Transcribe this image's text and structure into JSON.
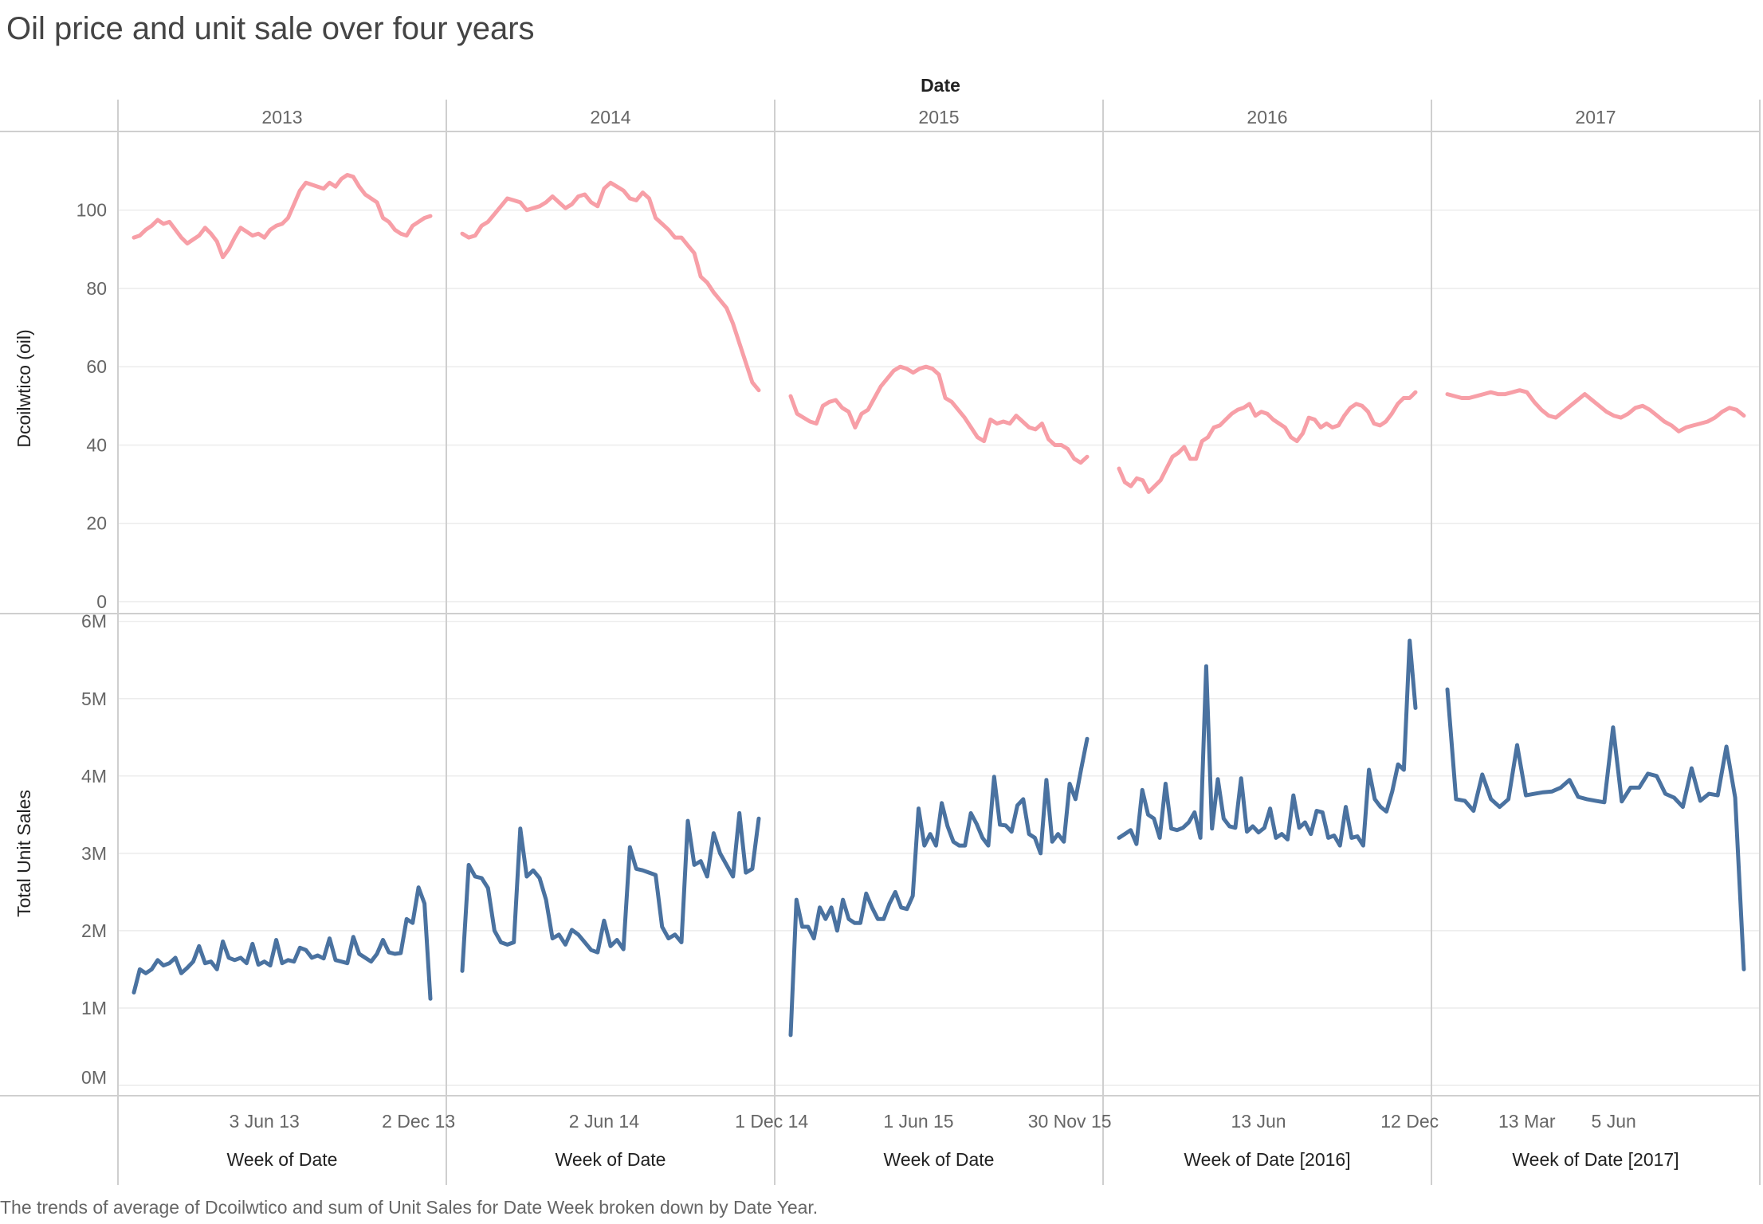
{
  "title": "Oil price and unit sale over four years",
  "caption": "The trends of average of Dcoilwtico and sum of Unit Sales for Date Week broken down by Date Year.",
  "colors": {
    "oil": "#f79fa7",
    "sales": "#4a72a0",
    "grid": "#ececec",
    "divider": "#cfcfcf"
  },
  "chart_data": {
    "type": "line",
    "column_header": "Date",
    "years": [
      "2013",
      "2014",
      "2015",
      "2016",
      "2017"
    ],
    "x_axis_titles": [
      "Week of Date",
      "Week of Date",
      "Week of Date",
      "Week of Date [2016]",
      "Week of Date [2017]"
    ],
    "x_tick_labels": [
      [
        "3 Jun 13",
        "2 Dec 13"
      ],
      [
        "2 Jun 14",
        "1 Dec 14"
      ],
      [
        "1 Jun 15",
        "30 Nov 15"
      ],
      [
        "13 Jun",
        "12 Dec"
      ],
      [
        "13 Mar",
        "5 Jun"
      ]
    ],
    "x_tick_weeks": [
      [
        22,
        48
      ],
      [
        22,
        48
      ],
      [
        22,
        48
      ],
      [
        24,
        50
      ],
      [
        11,
        23
      ]
    ],
    "oil": {
      "ylabel": "Dcoilwtico (oil)",
      "ylim": [
        0,
        115
      ],
      "yticks": [
        0,
        20,
        40,
        60,
        80,
        100
      ],
      "series": [
        [
          93,
          93.5,
          95,
          96,
          97.5,
          96.5,
          97,
          95,
          93,
          91.5,
          92.5,
          93.5,
          95.5,
          94,
          92,
          88,
          90,
          93,
          95.5,
          94.5,
          93.5,
          94,
          93,
          95,
          96,
          96.5,
          98,
          101.5,
          105,
          107,
          106.5,
          106,
          105.5,
          107,
          106,
          108,
          109,
          108.5,
          106,
          104,
          103,
          102,
          98,
          97,
          95,
          94,
          93.5,
          96,
          97,
          98,
          98.5
        ],
        [
          94,
          93,
          93.5,
          96,
          97,
          99,
          101,
          103,
          102.5,
          102,
          100,
          100.5,
          101,
          102,
          103.5,
          102,
          100.5,
          101.5,
          103.5,
          104,
          102,
          101,
          105.5,
          107,
          106,
          105,
          103,
          102.5,
          104.5,
          103,
          98,
          96.5,
          95,
          93,
          93,
          91,
          89,
          83,
          81.5,
          79,
          77,
          75,
          71,
          66,
          61,
          56,
          54
        ],
        [
          52.5,
          48,
          47,
          46,
          45.5,
          50,
          51,
          51.5,
          49.5,
          48.5,
          44.5,
          48,
          49,
          52,
          55,
          57,
          59,
          60,
          59.5,
          58.5,
          59.5,
          60,
          59.5,
          58,
          52,
          51,
          49,
          47,
          44.5,
          42,
          41,
          46.5,
          45.5,
          46,
          45.5,
          47.5,
          46,
          44.5,
          44,
          45.5,
          41.5,
          40,
          40,
          39,
          36.5,
          35.5,
          37
        ],
        [
          34,
          30.5,
          29.5,
          31.5,
          31,
          28,
          29.5,
          31,
          34,
          37,
          38,
          39.5,
          36.5,
          36.5,
          41,
          42,
          44.5,
          45,
          46.5,
          48,
          49,
          49.5,
          50.5,
          47.5,
          48.5,
          48,
          46.5,
          45.5,
          44.5,
          42,
          41,
          43,
          47,
          46.5,
          44.5,
          45.5,
          44.5,
          45,
          47.5,
          49.5,
          50.5,
          50,
          48.5,
          45.5,
          45,
          46,
          48,
          50.5,
          52,
          52,
          53.5
        ],
        [
          53,
          52.5,
          52,
          52,
          52.5,
          53,
          53.5,
          53,
          53,
          53.5,
          54,
          53.5,
          51,
          49,
          47.5,
          47,
          48.5,
          50,
          51.5,
          53,
          51.5,
          50,
          48.5,
          47.5,
          47,
          48,
          49.5,
          50,
          49,
          47.5,
          46,
          45,
          43.5,
          44.5,
          45,
          45.5,
          46,
          47,
          48.5,
          49.5,
          49,
          47.5
        ]
      ]
    },
    "sales": {
      "ylabel": "Total Unit Sales",
      "ylim": [
        0,
        6100000
      ],
      "yticks": [
        0,
        1000000,
        2000000,
        3000000,
        4000000,
        5000000,
        6000000
      ],
      "ytick_labels": [
        "0M",
        "1M",
        "2M",
        "3M",
        "4M",
        "5M",
        "6M"
      ],
      "series": [
        [
          1200000,
          1500000,
          1450000,
          1500000,
          1620000,
          1550000,
          1580000,
          1650000,
          1450000,
          1520000,
          1600000,
          1800000,
          1580000,
          1600000,
          1500000,
          1860000,
          1650000,
          1620000,
          1650000,
          1580000,
          1830000,
          1560000,
          1600000,
          1550000,
          1880000,
          1580000,
          1620000,
          1600000,
          1780000,
          1750000,
          1650000,
          1680000,
          1640000,
          1900000,
          1620000,
          1600000,
          1580000,
          1920000,
          1700000,
          1650000,
          1600000,
          1700000,
          1880000,
          1720000,
          1700000,
          1710000,
          2150000,
          2100000,
          2560000,
          2350000,
          1120000
        ],
        [
          1480000,
          2850000,
          2700000,
          2680000,
          2550000,
          2000000,
          1850000,
          1820000,
          1850000,
          3320000,
          2700000,
          2780000,
          2680000,
          2400000,
          1900000,
          1950000,
          1820000,
          2010000,
          1950000,
          1850000,
          1750000,
          1720000,
          2130000,
          1800000,
          1880000,
          1760000,
          3080000,
          2800000,
          2780000,
          2750000,
          2720000,
          2050000,
          1900000,
          1950000,
          1850000,
          3420000,
          2850000,
          2900000,
          2700000,
          3260000,
          3000000,
          2850000,
          2700000,
          3520000,
          2750000,
          2800000,
          3450000
        ],
        [
          650000,
          2400000,
          2050000,
          2050000,
          1900000,
          2300000,
          2150000,
          2300000,
          2000000,
          2400000,
          2150000,
          2100000,
          2100000,
          2480000,
          2300000,
          2150000,
          2150000,
          2350000,
          2500000,
          2300000,
          2280000,
          2450000,
          3580000,
          3100000,
          3250000,
          3100000,
          3650000,
          3350000,
          3150000,
          3100000,
          3100000,
          3520000,
          3380000,
          3200000,
          3100000,
          3990000,
          3370000,
          3360000,
          3280000,
          3620000,
          3700000,
          3250000,
          3200000,
          3000000,
          3950000,
          3150000,
          3250000,
          3150000,
          3900000,
          3700000,
          4100000,
          4480000
        ],
        [
          3200000,
          3250000,
          3300000,
          3120000,
          3820000,
          3500000,
          3450000,
          3200000,
          3900000,
          3320000,
          3300000,
          3330000,
          3400000,
          3530000,
          3200000,
          5420000,
          3320000,
          3960000,
          3450000,
          3350000,
          3330000,
          3970000,
          3280000,
          3350000,
          3270000,
          3330000,
          3580000,
          3200000,
          3250000,
          3180000,
          3750000,
          3330000,
          3400000,
          3250000,
          3550000,
          3530000,
          3200000,
          3230000,
          3100000,
          3600000,
          3200000,
          3220000,
          3100000,
          4080000,
          3700000,
          3600000,
          3540000,
          3800000,
          4150000,
          4080000,
          5750000,
          4880000
        ],
        [
          5120000,
          3700000,
          3680000,
          3550000,
          4020000,
          3700000,
          3600000,
          3700000,
          4400000,
          3750000,
          3770000,
          3790000,
          3800000,
          3850000,
          3950000,
          3730000,
          3700000,
          3680000,
          3660000,
          4630000,
          3670000,
          3850000,
          3850000,
          4030000,
          4000000,
          3770000,
          3720000,
          3600000,
          4100000,
          3680000,
          3770000,
          3750000,
          4380000,
          3720000,
          1500000
        ]
      ]
    }
  }
}
